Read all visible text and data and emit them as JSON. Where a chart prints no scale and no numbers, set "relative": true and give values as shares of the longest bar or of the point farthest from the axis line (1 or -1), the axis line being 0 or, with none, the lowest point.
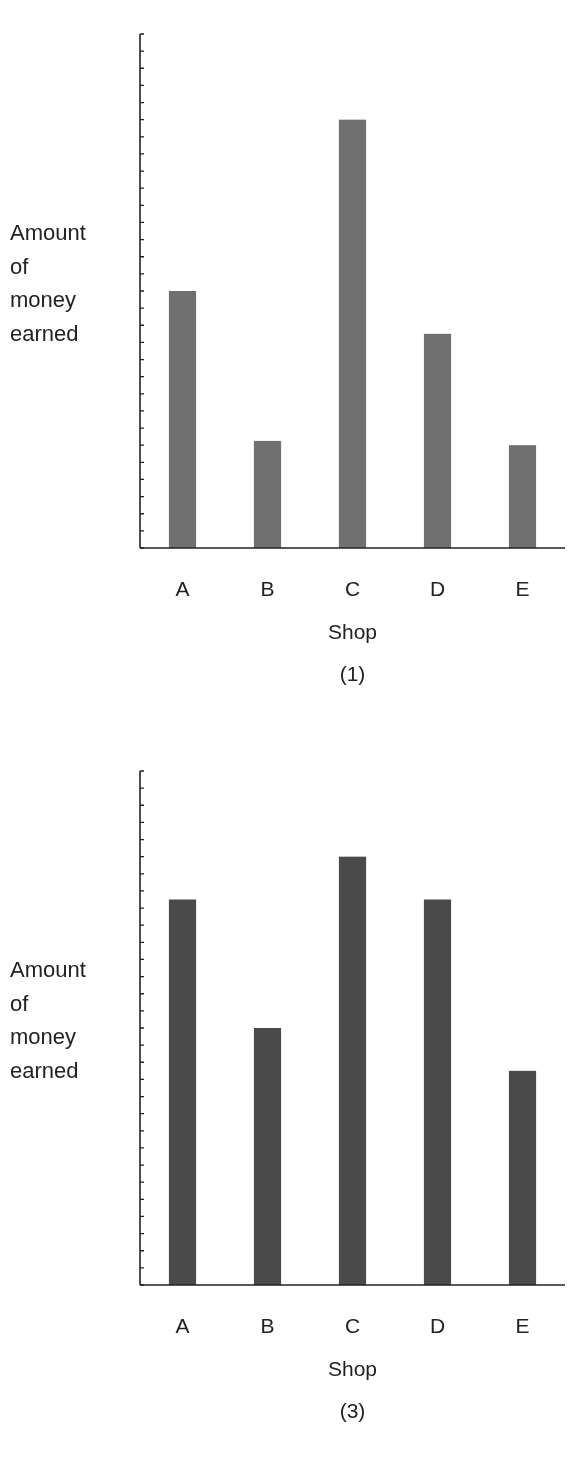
{
  "chart_data": [
    {
      "type": "bar",
      "categories": [
        "A",
        "B",
        "C",
        "D",
        "E"
      ],
      "values": [
        0.6,
        0.25,
        1,
        0.5,
        0.24
      ],
      "relative": true,
      "color": "#707070",
      "xlabel": "Shop",
      "ylabel": "Amount of money earned",
      "annotations": [
        "(1)"
      ]
    },
    {
      "type": "bar",
      "categories": [
        "A",
        "B",
        "C",
        "D",
        "E"
      ],
      "values": [
        0.9,
        0.6,
        1,
        0.9,
        0.5
      ],
      "relative": true,
      "color": "#4a4a4a",
      "xlabel": "Shop",
      "ylabel": "Amount of money earned",
      "annotations": [
        "(3)"
      ]
    }
  ]
}
